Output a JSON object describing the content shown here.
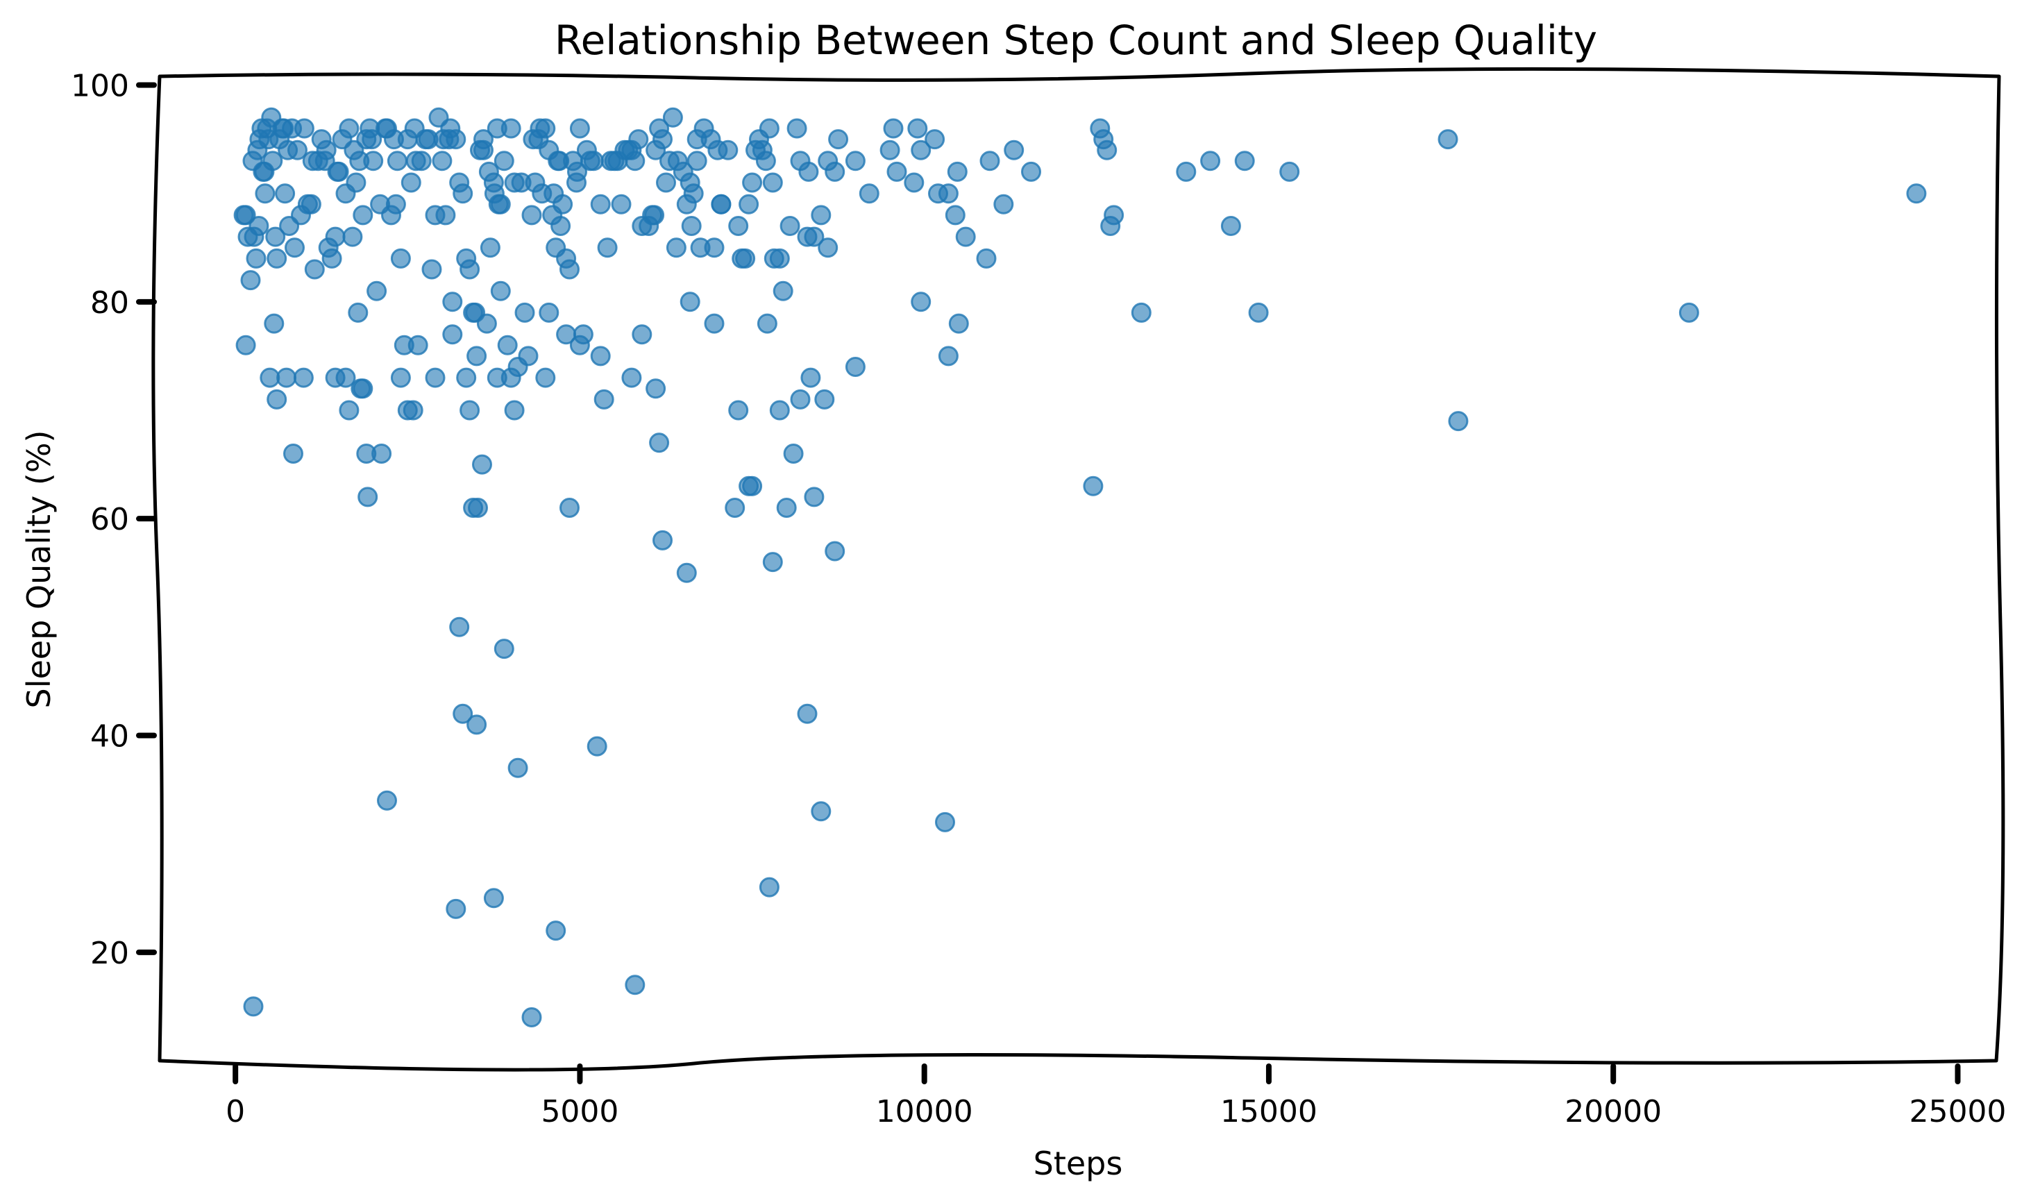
{
  "chart_data": {
    "type": "scatter",
    "title": "Relationship Between Step Count and Sleep Quality",
    "xlabel": "Steps",
    "ylabel": "Sleep Quality (%)",
    "xlim": [
      -1100,
      25600
    ],
    "ylim": [
      10,
      100.8
    ],
    "xticks": [
      0,
      5000,
      10000,
      15000,
      20000,
      25000
    ],
    "yticks": [
      20,
      40,
      60,
      80,
      100
    ],
    "xtick_labels": [
      "0",
      "5000",
      "10000",
      "15000",
      "20000",
      "25000"
    ],
    "ytick_labels": [
      "20",
      "40",
      "60",
      "80",
      "100"
    ],
    "grid": false,
    "legend": "none",
    "point_color": "#1f77b4",
    "points": [
      [
        150,
        88
      ],
      [
        180,
        86
      ],
      [
        220,
        82
      ],
      [
        250,
        93
      ],
      [
        300,
        84
      ],
      [
        320,
        94
      ],
      [
        350,
        95
      ],
      [
        380,
        96
      ],
      [
        400,
        92
      ],
      [
        430,
        90
      ],
      [
        460,
        96
      ],
      [
        480,
        95
      ],
      [
        520,
        97
      ],
      [
        540,
        93
      ],
      [
        580,
        86
      ],
      [
        600,
        84
      ],
      [
        640,
        95
      ],
      [
        680,
        96
      ],
      [
        720,
        90
      ],
      [
        780,
        87
      ],
      [
        820,
        96
      ],
      [
        860,
        85
      ],
      [
        900,
        94
      ],
      [
        950,
        88
      ],
      [
        1000,
        96
      ],
      [
        1050,
        89
      ],
      [
        1100,
        89
      ],
      [
        1150,
        83
      ],
      [
        1200,
        93
      ],
      [
        1250,
        95
      ],
      [
        1300,
        93
      ],
      [
        1350,
        85
      ],
      [
        1400,
        84
      ],
      [
        1450,
        86
      ],
      [
        1500,
        92
      ],
      [
        1550,
        95
      ],
      [
        1600,
        90
      ],
      [
        1650,
        96
      ],
      [
        1700,
        86
      ],
      [
        1750,
        91
      ],
      [
        1800,
        93
      ],
      [
        1850,
        88
      ],
      [
        1900,
        95
      ],
      [
        1950,
        96
      ],
      [
        2000,
        93
      ],
      [
        2100,
        89
      ],
      [
        2200,
        96
      ],
      [
        2300,
        95
      ],
      [
        2350,
        93
      ],
      [
        2400,
        84
      ],
      [
        2450,
        76
      ],
      [
        2500,
        95
      ],
      [
        2550,
        91
      ],
      [
        2600,
        96
      ],
      [
        2650,
        76
      ],
      [
        2700,
        93
      ],
      [
        2800,
        95
      ],
      [
        2850,
        83
      ],
      [
        2900,
        88
      ],
      [
        2950,
        97
      ],
      [
        3000,
        93
      ],
      [
        3050,
        88
      ],
      [
        3100,
        95
      ],
      [
        3150,
        80
      ],
      [
        3200,
        95
      ],
      [
        3250,
        91
      ],
      [
        3300,
        90
      ],
      [
        3350,
        84
      ],
      [
        3400,
        83
      ],
      [
        3450,
        79
      ],
      [
        3500,
        75
      ],
      [
        3550,
        94
      ],
      [
        3600,
        95
      ],
      [
        3650,
        78
      ],
      [
        3700,
        85
      ],
      [
        3750,
        91
      ],
      [
        3800,
        96
      ],
      [
        3850,
        89
      ],
      [
        3900,
        93
      ],
      [
        3950,
        76
      ],
      [
        4000,
        96
      ],
      [
        4050,
        91
      ],
      [
        4100,
        74
      ],
      [
        4150,
        91
      ],
      [
        4200,
        79
      ],
      [
        4250,
        75
      ],
      [
        4300,
        88
      ],
      [
        4350,
        91
      ],
      [
        4400,
        95
      ],
      [
        4450,
        90
      ],
      [
        4500,
        96
      ],
      [
        4550,
        94
      ],
      [
        4600,
        88
      ],
      [
        4650,
        85
      ],
      [
        4700,
        93
      ],
      [
        4750,
        89
      ],
      [
        4800,
        84
      ],
      [
        4850,
        83
      ],
      [
        4900,
        93
      ],
      [
        4950,
        91
      ],
      [
        5000,
        96
      ],
      [
        5050,
        77
      ],
      [
        5100,
        94
      ],
      [
        5200,
        93
      ],
      [
        5300,
        89
      ],
      [
        5400,
        85
      ],
      [
        5500,
        93
      ],
      [
        5600,
        89
      ],
      [
        5700,
        94
      ],
      [
        5750,
        94
      ],
      [
        5800,
        93
      ],
      [
        5900,
        87
      ],
      [
        6000,
        87
      ],
      [
        6050,
        88
      ],
      [
        6100,
        94
      ],
      [
        6150,
        96
      ],
      [
        6200,
        95
      ],
      [
        6250,
        91
      ],
      [
        6300,
        93
      ],
      [
        6400,
        85
      ],
      [
        6500,
        92
      ],
      [
        6550,
        89
      ],
      [
        6600,
        91
      ],
      [
        6650,
        90
      ],
      [
        6700,
        95
      ],
      [
        6750,
        85
      ],
      [
        6800,
        96
      ],
      [
        6900,
        95
      ],
      [
        6950,
        85
      ],
      [
        7000,
        94
      ],
      [
        7050,
        89
      ],
      [
        7300,
        87
      ],
      [
        7350,
        84
      ],
      [
        7400,
        84
      ],
      [
        7450,
        89
      ],
      [
        7500,
        91
      ],
      [
        7550,
        94
      ],
      [
        7600,
        95
      ],
      [
        7700,
        93
      ],
      [
        7750,
        96
      ],
      [
        7800,
        91
      ],
      [
        7900,
        84
      ],
      [
        8050,
        87
      ],
      [
        8200,
        93
      ],
      [
        8300,
        86
      ],
      [
        8400,
        86
      ],
      [
        8500,
        88
      ],
      [
        8600,
        93
      ],
      [
        8700,
        92
      ],
      [
        8750,
        95
      ],
      [
        9200,
        90
      ],
      [
        9500,
        94
      ],
      [
        9550,
        96
      ],
      [
        9600,
        92
      ],
      [
        9850,
        91
      ],
      [
        9900,
        96
      ],
      [
        9950,
        94
      ],
      [
        10150,
        95
      ],
      [
        10200,
        90
      ],
      [
        10350,
        90
      ],
      [
        10450,
        88
      ],
      [
        10600,
        86
      ],
      [
        10900,
        84
      ],
      [
        10950,
        93
      ],
      [
        11150,
        89
      ],
      [
        11300,
        94
      ],
      [
        11550,
        92
      ],
      [
        12550,
        96
      ],
      [
        12600,
        95
      ],
      [
        12650,
        94
      ],
      [
        12700,
        87
      ],
      [
        12750,
        88
      ],
      [
        13800,
        92
      ],
      [
        14150,
        93
      ],
      [
        14450,
        87
      ],
      [
        14650,
        93
      ],
      [
        15300,
        92
      ],
      [
        17600,
        95
      ],
      [
        24400,
        90
      ],
      [
        150,
        76
      ],
      [
        560,
        78
      ],
      [
        500,
        73
      ],
      [
        600,
        71
      ],
      [
        740,
        73
      ],
      [
        840,
        66
      ],
      [
        990,
        73
      ],
      [
        1450,
        73
      ],
      [
        1600,
        73
      ],
      [
        1650,
        70
      ],
      [
        1780,
        79
      ],
      [
        1820,
        72
      ],
      [
        1850,
        72
      ],
      [
        1900,
        66
      ],
      [
        1920,
        62
      ],
      [
        2050,
        81
      ],
      [
        2120,
        66
      ],
      [
        2200,
        34
      ],
      [
        2400,
        73
      ],
      [
        2500,
        70
      ],
      [
        2580,
        70
      ],
      [
        2900,
        73
      ],
      [
        3150,
        77
      ],
      [
        3200,
        24
      ],
      [
        3250,
        50
      ],
      [
        3300,
        42
      ],
      [
        3350,
        73
      ],
      [
        3400,
        70
      ],
      [
        3450,
        61
      ],
      [
        3500,
        41
      ],
      [
        3520,
        61
      ],
      [
        3580,
        65
      ],
      [
        3750,
        25
      ],
      [
        3800,
        73
      ],
      [
        3850,
        81
      ],
      [
        3900,
        48
      ],
      [
        4000,
        73
      ],
      [
        4050,
        70
      ],
      [
        4100,
        37
      ],
      [
        4300,
        14
      ],
      [
        4500,
        73
      ],
      [
        4550,
        79
      ],
      [
        4650,
        22
      ],
      [
        4800,
        77
      ],
      [
        4850,
        61
      ],
      [
        5000,
        76
      ],
      [
        5250,
        39
      ],
      [
        5300,
        75
      ],
      [
        5350,
        71
      ],
      [
        5750,
        73
      ],
      [
        5800,
        17
      ],
      [
        5900,
        77
      ],
      [
        6100,
        72
      ],
      [
        6150,
        67
      ],
      [
        6200,
        58
      ],
      [
        6550,
        55
      ],
      [
        6600,
        80
      ],
      [
        6950,
        78
      ],
      [
        7250,
        61
      ],
      [
        7300,
        70
      ],
      [
        7450,
        63
      ],
      [
        7500,
        63
      ],
      [
        7750,
        26
      ],
      [
        7800,
        56
      ],
      [
        7900,
        70
      ],
      [
        7950,
        81
      ],
      [
        8000,
        61
      ],
      [
        8100,
        66
      ],
      [
        8200,
        71
      ],
      [
        8300,
        42
      ],
      [
        8350,
        73
      ],
      [
        8400,
        62
      ],
      [
        8500,
        33
      ],
      [
        8550,
        71
      ],
      [
        8700,
        57
      ],
      [
        9000,
        74
      ],
      [
        9950,
        80
      ],
      [
        10300,
        32
      ],
      [
        10350,
        75
      ],
      [
        10500,
        78
      ],
      [
        12450,
        63
      ],
      [
        13150,
        79
      ],
      [
        14850,
        79
      ],
      [
        17750,
        69
      ],
      [
        21100,
        79
      ],
      [
        120,
        88
      ],
      [
        260,
        15
      ],
      [
        270,
        86
      ],
      [
        340,
        87
      ],
      [
        420,
        92
      ],
      [
        700,
        96
      ],
      [
        760,
        94
      ],
      [
        1120,
        93
      ],
      [
        1320,
        94
      ],
      [
        1480,
        92
      ],
      [
        1720,
        94
      ],
      [
        1980,
        95
      ],
      [
        2260,
        88
      ],
      [
        2330,
        89
      ],
      [
        2620,
        93
      ],
      [
        3020,
        95
      ],
      [
        3480,
        79
      ],
      [
        3600,
        94
      ],
      [
        3680,
        92
      ],
      [
        3760,
        90
      ],
      [
        3820,
        89
      ],
      [
        4320,
        95
      ],
      [
        4620,
        90
      ],
      [
        4680,
        93
      ],
      [
        4720,
        87
      ],
      [
        5150,
        93
      ],
      [
        5450,
        93
      ],
      [
        5650,
        94
      ],
      [
        5850,
        95
      ],
      [
        6080,
        88
      ],
      [
        6350,
        97
      ],
      [
        6420,
        93
      ],
      [
        6700,
        93
      ],
      [
        7050,
        89
      ],
      [
        7150,
        94
      ],
      [
        7650,
        94
      ],
      [
        7820,
        84
      ],
      [
        7720,
        78
      ],
      [
        8150,
        96
      ],
      [
        8320,
        92
      ],
      [
        9000,
        93
      ],
      [
        2180,
        96
      ],
      [
        2760,
        95
      ],
      [
        3120,
        96
      ],
      [
        4420,
        96
      ],
      [
        4960,
        92
      ],
      [
        5550,
        93
      ],
      [
        6620,
        87
      ],
      [
        10480,
        92
      ],
      [
        8600,
        85
      ]
    ]
  }
}
